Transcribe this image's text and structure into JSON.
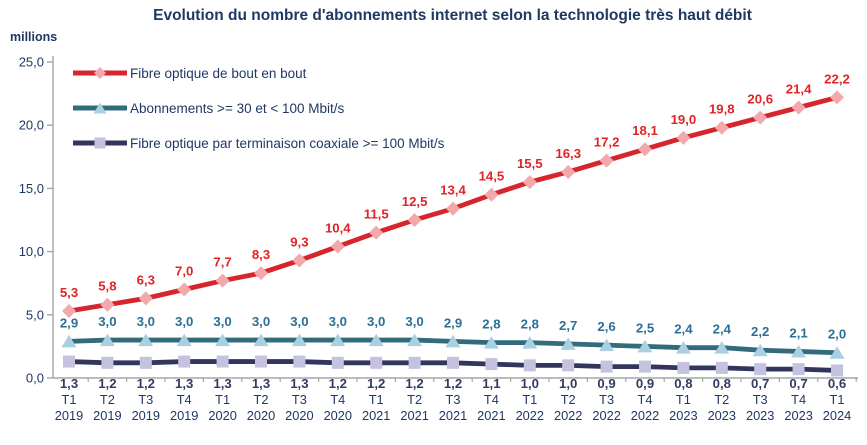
{
  "colors": {
    "text_navy": "#1F3864",
    "axis_grey": "#A6A6A6",
    "background": "#FFFFFF"
  },
  "chart_data": {
    "type": "line",
    "title": "Evolution du nombre d'abonnements internet selon la technologie très haut débit",
    "ylabel": "millions",
    "xlabel": "",
    "ylim": [
      0,
      25
    ],
    "y_tick_values": [
      0,
      5,
      10,
      15,
      20,
      25
    ],
    "y_tick_labels": [
      "0,0",
      "5,0",
      "10,0",
      "15,0",
      "20,0",
      "25,0"
    ],
    "grid": false,
    "legend_position": "top-left",
    "decimal_separator": ",",
    "x": [
      "T1 2019",
      "T2 2019",
      "T3 2019",
      "T4 2019",
      "T1 2020",
      "T2 2020",
      "T3 2020",
      "T4 2020",
      "T1 2021",
      "T2 2021",
      "T3 2021",
      "T4 2021",
      "T1 2022",
      "T2 2022",
      "T3 2022",
      "T4 2022",
      "T1 2023",
      "T2 2023",
      "T3 2023",
      "T4 2023",
      "T1 2024"
    ],
    "series": [
      {
        "name": "Fibre optique de bout en bout",
        "marker": "diamond",
        "line_color": "#D6252B",
        "marker_color": "#F2A8AC",
        "label_color": "#E02326",
        "values": [
          5.3,
          5.8,
          6.3,
          7.0,
          7.7,
          8.3,
          9.3,
          10.4,
          11.5,
          12.5,
          13.4,
          14.5,
          15.5,
          16.3,
          17.2,
          18.1,
          19.0,
          19.8,
          20.6,
          21.4,
          22.2
        ]
      },
      {
        "name": "Abonnements >= 30 et < 100 Mbit/s",
        "marker": "triangle",
        "line_color": "#316B7C",
        "marker_color": "#A9D0E2",
        "label_color": "#2A6F97",
        "values": [
          2.9,
          3.0,
          3.0,
          3.0,
          3.0,
          3.0,
          3.0,
          3.0,
          3.0,
          3.0,
          2.9,
          2.8,
          2.8,
          2.7,
          2.6,
          2.5,
          2.4,
          2.4,
          2.2,
          2.1,
          2.0
        ]
      },
      {
        "name": "Fibre optique par terminaison coaxiale >= 100 Mbit/s",
        "marker": "square",
        "line_color": "#33365C",
        "marker_color": "#C4C2DF",
        "label_color": "#333A63",
        "values": [
          1.3,
          1.2,
          1.2,
          1.3,
          1.3,
          1.3,
          1.3,
          1.2,
          1.2,
          1.2,
          1.2,
          1.1,
          1.0,
          1.0,
          0.9,
          0.9,
          0.8,
          0.8,
          0.7,
          0.7,
          0.6
        ]
      }
    ]
  }
}
